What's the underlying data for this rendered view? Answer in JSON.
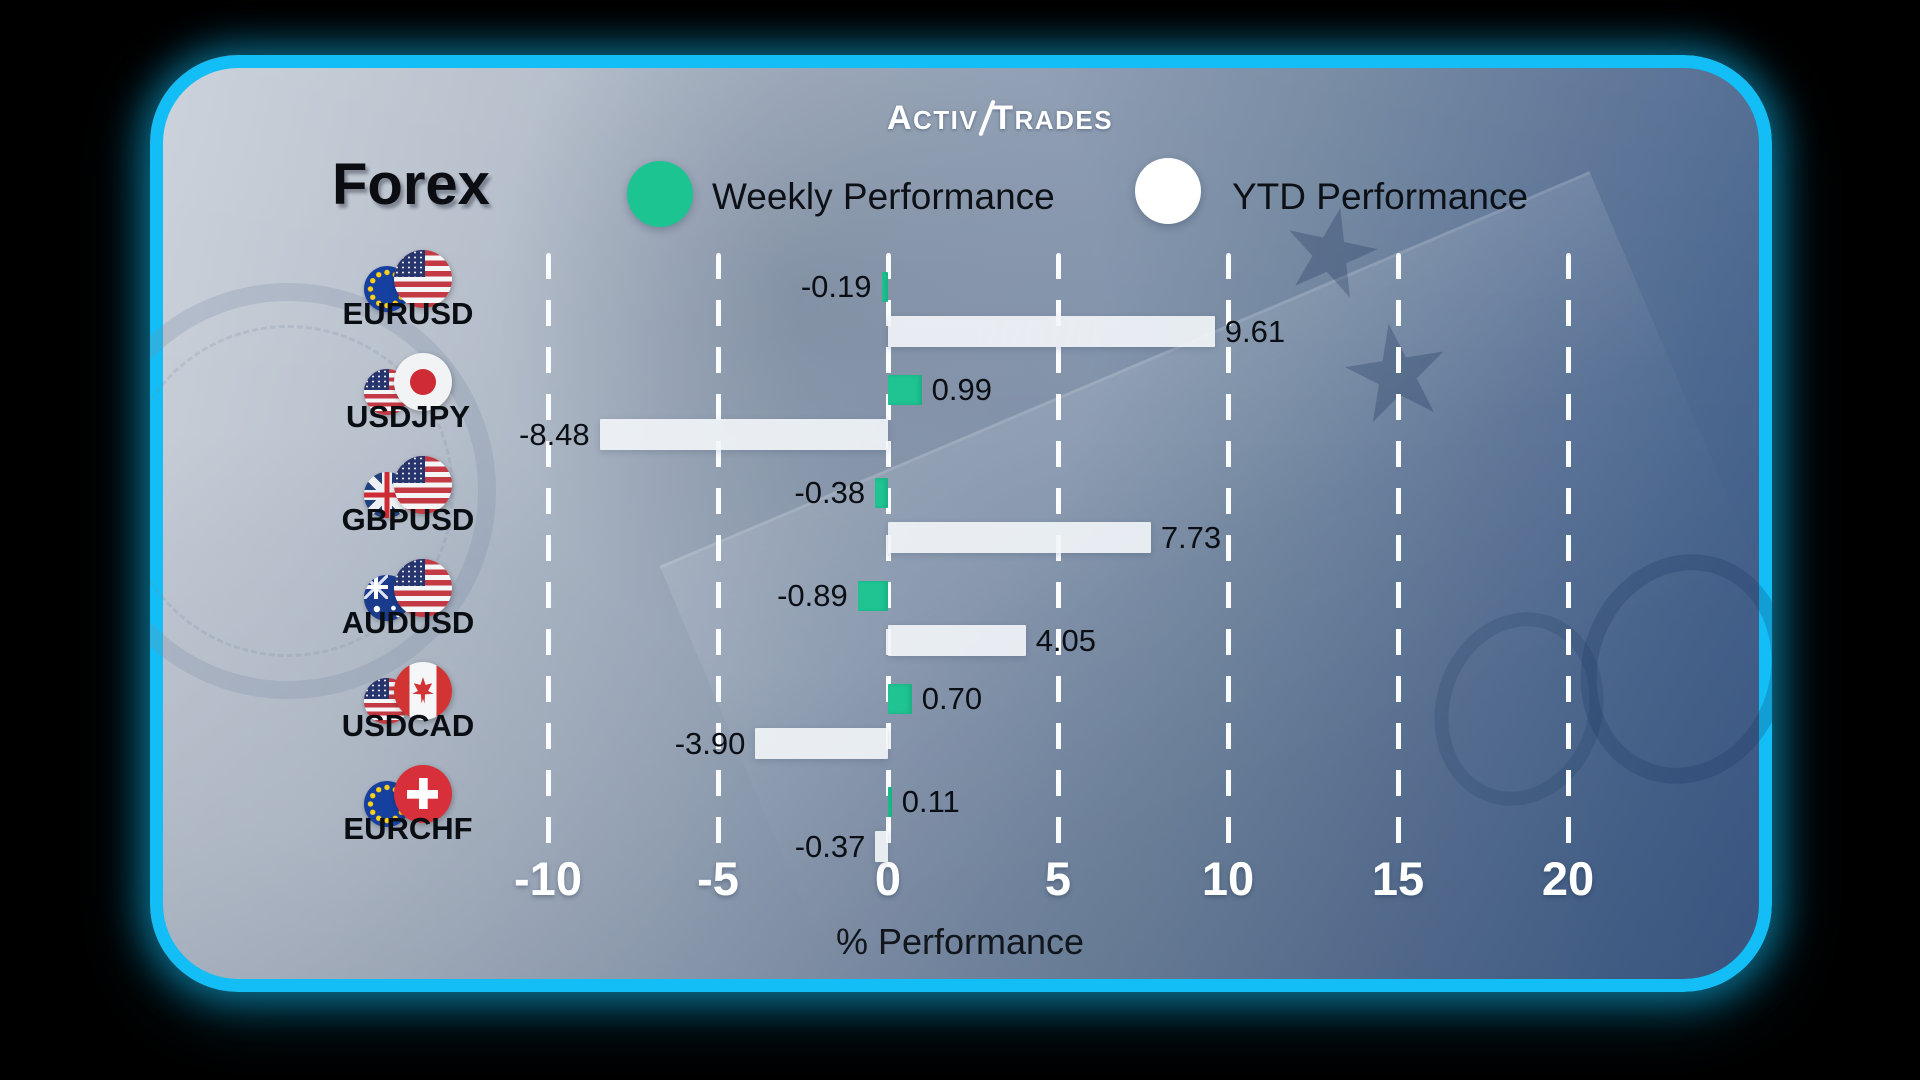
{
  "brand": {
    "logo_left": "Activ",
    "logo_right": "Trades"
  },
  "title": "Forex",
  "legend": [
    {
      "label": "Weekly Performance",
      "color": "#1CC492"
    },
    {
      "label": "YTD Performance",
      "color": "#FFFFFF"
    }
  ],
  "colors": {
    "border_accent": "#12BEF5",
    "weekly_bar": "#1FC492",
    "ytd_bar": "#F3F6FA"
  },
  "chart_data": {
    "type": "bar",
    "orientation": "horizontal",
    "title": "Forex",
    "categories": [
      "EURUSD",
      "USDJPY",
      "GBPUSD",
      "AUDUSD",
      "USDCAD",
      "EURCHF"
    ],
    "series": [
      {
        "name": "Weekly Performance",
        "color": "#1FC492",
        "values": [
          -0.19,
          0.99,
          -0.38,
          -0.89,
          0.7,
          0.11
        ]
      },
      {
        "name": "YTD Performance",
        "color": "#F3F6FA",
        "values": [
          9.61,
          -8.48,
          7.73,
          4.05,
          -3.9,
          -0.37
        ]
      }
    ],
    "weekly_labels": [
      "-0.19",
      "0.99",
      "-0.38",
      "-0.89",
      "0.70",
      "0.11"
    ],
    "ytd_labels": [
      "9.61",
      "-8.48",
      "7.73",
      "4.05",
      "-3.90",
      "-0.37"
    ],
    "flags": [
      [
        "eu",
        "us"
      ],
      [
        "us",
        "jp"
      ],
      [
        "gb",
        "us"
      ],
      [
        "au",
        "us"
      ],
      [
        "us",
        "ca"
      ],
      [
        "eu",
        "ch"
      ]
    ],
    "x_ticks": [
      -10,
      -5,
      0,
      5,
      10,
      15,
      20
    ],
    "x_tick_labels": [
      "-10",
      "-5",
      "0",
      "5",
      "10",
      "15",
      "20"
    ],
    "xlabel": "% Performance",
    "xlim": [
      -12,
      22
    ],
    "grid": "vertical-dashed",
    "legend_position": "top"
  }
}
